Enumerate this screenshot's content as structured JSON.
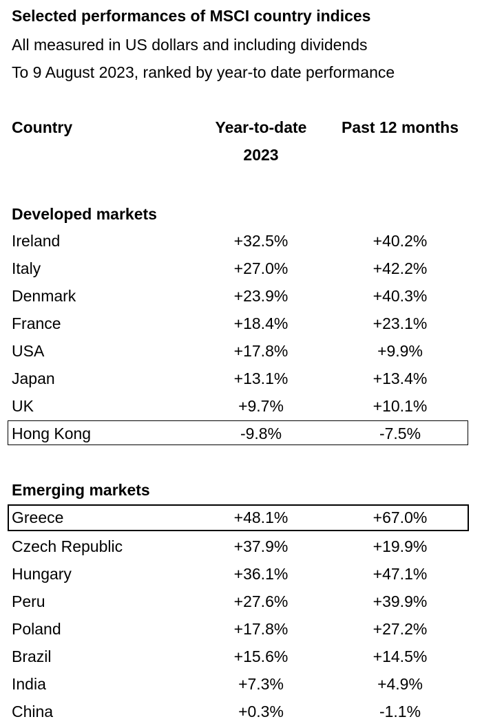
{
  "header": {
    "title": "Selected performances of MSCI country indices",
    "subtitle_1": "All measured in US dollars and including dividends",
    "subtitle_2": "To 9 August 2023, ranked by year-to date performance"
  },
  "table": {
    "columns": {
      "country": "Country",
      "ytd_line1": "Year-to-date",
      "ytd_line2": "2023",
      "past12": "Past 12 months"
    },
    "developed": {
      "label": "Developed markets",
      "rows": [
        {
          "country": "Ireland",
          "ytd": "+32.5%",
          "past12": "+40.2%"
        },
        {
          "country": "Italy",
          "ytd": "+27.0%",
          "past12": "+42.2%"
        },
        {
          "country": "Denmark",
          "ytd": "+23.9%",
          "past12": "+40.3%"
        },
        {
          "country": "France",
          "ytd": "+18.4%",
          "past12": "+23.1%"
        },
        {
          "country": "USA",
          "ytd": "+17.8%",
          "past12": "+9.9%"
        },
        {
          "country": "Japan",
          "ytd": "+13.1%",
          "past12": "+13.4%"
        },
        {
          "country": "UK",
          "ytd": "+9.7%",
          "past12": "+10.1%"
        },
        {
          "country": "Hong Kong",
          "ytd": "-9.8%",
          "past12": "-7.5%"
        }
      ]
    },
    "emerging": {
      "label": "Emerging markets",
      "rows": [
        {
          "country": "Greece",
          "ytd": "+48.1%",
          "past12": "+67.0%"
        },
        {
          "country": "Czech Republic",
          "ytd": "+37.9%",
          "past12": "+19.9%"
        },
        {
          "country": "Hungary",
          "ytd": "+36.1%",
          "past12": "+47.1%"
        },
        {
          "country": "Peru",
          "ytd": "+27.6%",
          "past12": "+39.9%"
        },
        {
          "country": "Poland",
          "ytd": "+17.8%",
          "past12": "+27.2%"
        },
        {
          "country": "Brazil",
          "ytd": "+15.6%",
          "past12": "+14.5%"
        },
        {
          "country": "India",
          "ytd": "+7.3%",
          "past12": "+4.9%"
        },
        {
          "country": "China",
          "ytd": "+0.3%",
          "past12": "-1.1%"
        }
      ]
    }
  }
}
